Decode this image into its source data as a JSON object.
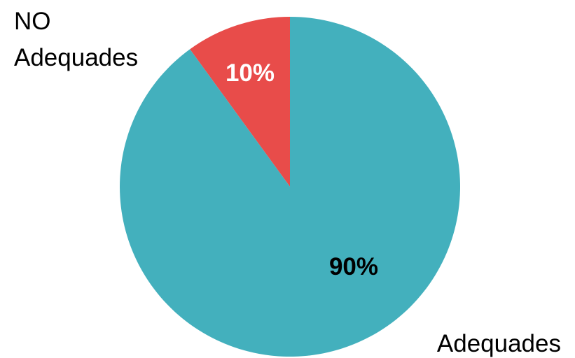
{
  "chart_data": {
    "type": "pie",
    "categories": [
      "NO Adequades",
      "Adequades"
    ],
    "category_label_lines": [
      [
        "NO",
        "Adequades"
      ],
      [
        "Adequades"
      ]
    ],
    "values": [
      10,
      90
    ],
    "value_labels": [
      "10%",
      "90%"
    ],
    "colors": [
      "#E84C4A",
      "#43B0BD"
    ],
    "value_label_colors": [
      "#FFFFFF",
      "#000000"
    ],
    "start_angle": "12 o'clock",
    "direction": "counterclockwise",
    "legend": "none",
    "title": ""
  }
}
